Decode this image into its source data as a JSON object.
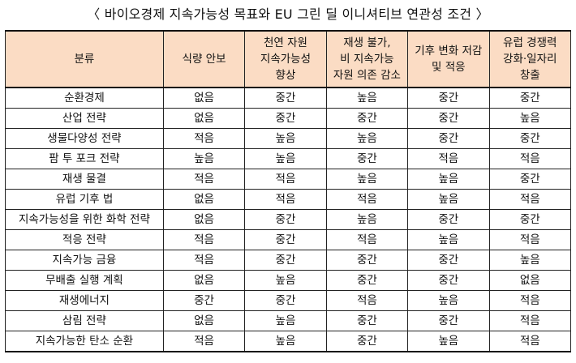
{
  "title": "〈 바이오경제 지속가능성 목표와 EU 그린 딜 이니셔티브 연관성 조건 〉",
  "table": {
    "headers": [
      [
        "분류"
      ],
      [
        "식량 안보"
      ],
      [
        "천연 자원",
        "지속가능성",
        "향상"
      ],
      [
        "재생 불가,",
        "비 지속가능",
        "자원 의존 감소"
      ],
      [
        "기후 변화 저감",
        "및 적응"
      ],
      [
        "유럽 경쟁력",
        "강화·일자리",
        "창출"
      ]
    ],
    "rows": [
      [
        "순환경제",
        "없음",
        "중간",
        "높음",
        "중간",
        "중간"
      ],
      [
        "산업 전략",
        "없음",
        "중간",
        "중간",
        "중간",
        "높음"
      ],
      [
        "생물다양성 전략",
        "적음",
        "높음",
        "높음",
        "중간",
        "중간"
      ],
      [
        "팜 투 포크 전략",
        "높음",
        "높음",
        "중간",
        "적음",
        "적음"
      ],
      [
        "재생 물결",
        "적음",
        "적음",
        "높음",
        "높음",
        "중간"
      ],
      [
        "유럽 기후 법",
        "없음",
        "적음",
        "적음",
        "높음",
        "적음"
      ],
      [
        "지속가능성을 위한 화학 전략",
        "없음",
        "중간",
        "높음",
        "중간",
        "중간"
      ],
      [
        "적응 전략",
        "적음",
        "중간",
        "적음",
        "높음",
        "적음"
      ],
      [
        "지속가능 금융",
        "적음",
        "중간",
        "중간",
        "중간",
        "높음"
      ],
      [
        "무배출 실행 계획",
        "없음",
        "높음",
        "중간",
        "중간",
        "없음"
      ],
      [
        "재생에너지",
        "중간",
        "중간",
        "적음",
        "높음",
        "적음"
      ],
      [
        "삼림 전략",
        "없음",
        "높음",
        "중간",
        "중간",
        "적음"
      ],
      [
        "지속가능한 탄소 순환",
        "적음",
        "높음",
        "중간",
        "높음",
        "적음"
      ]
    ]
  }
}
